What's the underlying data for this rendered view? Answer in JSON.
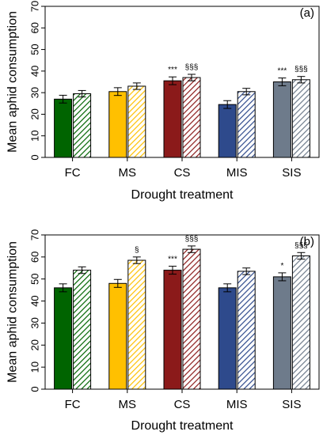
{
  "figure": {
    "xlabel": "Drought treatment",
    "ylabel": "Mean aphid consumption"
  },
  "chart_data": [
    {
      "type": "bar",
      "panel_label": "(a)",
      "categories": [
        "FC",
        "MS",
        "CS",
        "MIS",
        "SIS"
      ],
      "ylim": [
        0,
        70
      ],
      "yticks": [
        0,
        10,
        20,
        30,
        40,
        50,
        60,
        70
      ],
      "xlabel": "Drought treatment",
      "ylabel": "Mean aphid consumption",
      "grid": false,
      "series": [
        {
          "pattern": "solid",
          "values": [
            27,
            30.5,
            35.5,
            24.5,
            35
          ],
          "errors": [
            1.8,
            1.8,
            1.8,
            1.8,
            1.8
          ]
        },
        {
          "pattern": "hatched",
          "values": [
            29.5,
            33,
            37,
            30.5,
            36
          ],
          "errors": [
            1.5,
            1.5,
            1.5,
            1.5,
            1.5
          ]
        }
      ],
      "colors": [
        "#006400",
        "#FFC000",
        "#8B1A1A",
        "#2E4A8C",
        "#6E7B8B"
      ],
      "annotations": [
        {
          "category": "CS",
          "series": 0,
          "text": "***"
        },
        {
          "category": "CS",
          "series": 1,
          "text": "§§§"
        },
        {
          "category": "SIS",
          "series": 0,
          "text": "***"
        },
        {
          "category": "SIS",
          "series": 1,
          "text": "§§§"
        }
      ]
    },
    {
      "type": "bar",
      "panel_label": "(b)",
      "categories": [
        "FC",
        "MS",
        "CS",
        "MIS",
        "SIS"
      ],
      "ylim": [
        0,
        70
      ],
      "yticks": [
        0,
        10,
        20,
        30,
        40,
        50,
        60,
        70
      ],
      "xlabel": "Drought treatment",
      "ylabel": "Mean aphid consumption",
      "grid": false,
      "series": [
        {
          "pattern": "solid",
          "values": [
            46,
            48,
            54,
            46,
            51
          ],
          "errors": [
            1.8,
            1.8,
            1.8,
            1.8,
            1.8
          ]
        },
        {
          "pattern": "hatched",
          "values": [
            54,
            58.5,
            63.5,
            53.5,
            60.5
          ],
          "errors": [
            1.5,
            1.5,
            1.5,
            1.5,
            1.5
          ]
        }
      ],
      "colors": [
        "#006400",
        "#FFC000",
        "#8B1A1A",
        "#2E4A8C",
        "#6E7B8B"
      ],
      "annotations": [
        {
          "category": "MS",
          "series": 1,
          "text": "§"
        },
        {
          "category": "CS",
          "series": 0,
          "text": "***"
        },
        {
          "category": "CS",
          "series": 1,
          "text": "§§§"
        },
        {
          "category": "SIS",
          "series": 0,
          "text": "*"
        },
        {
          "category": "SIS",
          "series": 1,
          "text": "§§§"
        }
      ]
    }
  ]
}
